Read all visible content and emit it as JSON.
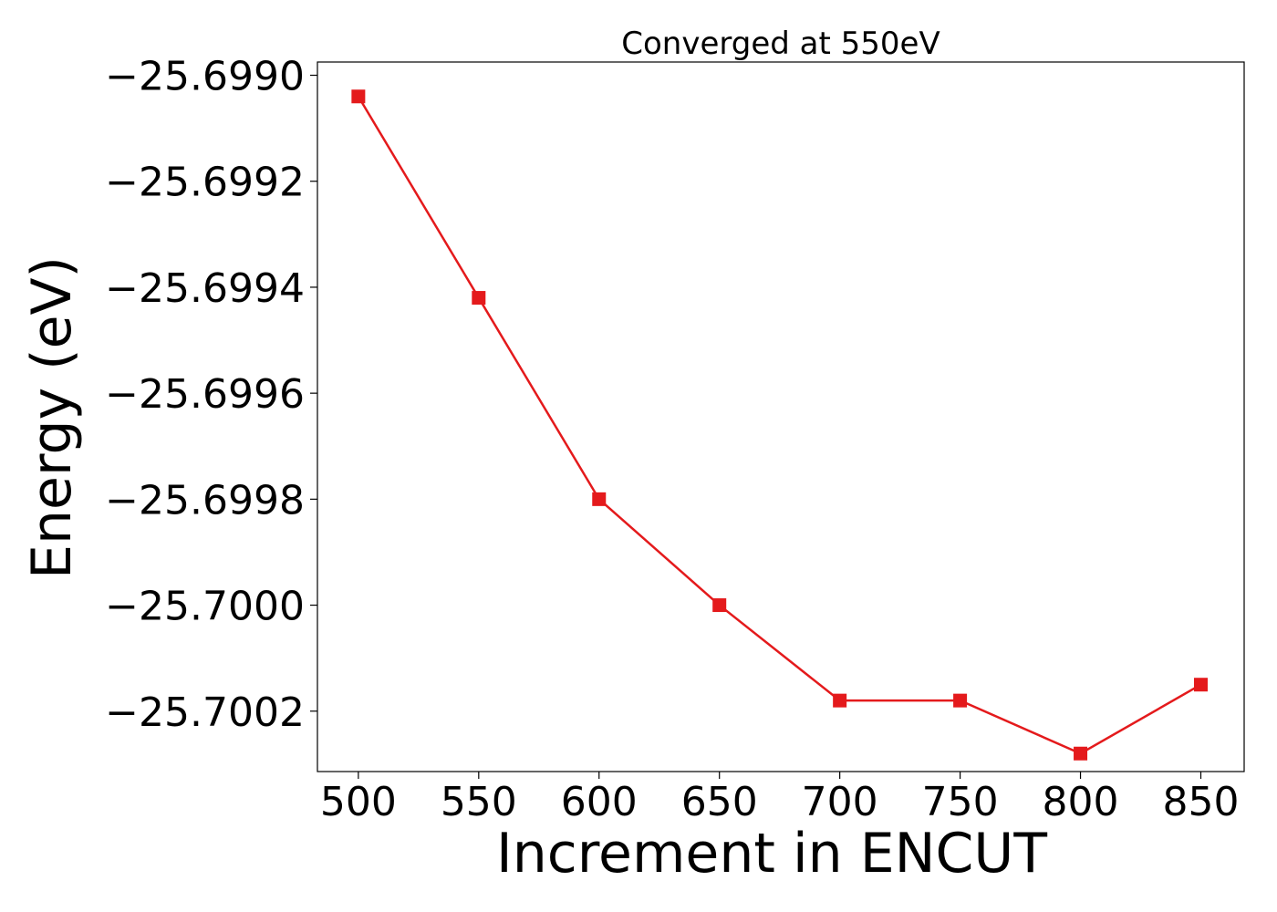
{
  "chart_data": {
    "type": "line",
    "title": "Converged at 550eV",
    "xlabel": "Increment in ENCUT",
    "ylabel": "Energy (eV)",
    "x": [
      500,
      550,
      600,
      650,
      700,
      750,
      800,
      850
    ],
    "series": [
      {
        "values": [
          -25.69904,
          -25.69942,
          -25.6998,
          -25.7,
          -25.70018,
          -25.70018,
          -25.70028,
          -25.70015
        ],
        "color": "#e41a1c",
        "marker": "square"
      }
    ],
    "xlim": [
      483,
      868
    ],
    "ylim": [
      -25.700314,
      -25.698975
    ],
    "xticks": [
      500,
      550,
      600,
      650,
      700,
      750,
      800,
      850
    ],
    "xtick_labels": [
      "500",
      "550",
      "600",
      "650",
      "700",
      "750",
      "800",
      "850"
    ],
    "yticks": [
      -25.699,
      -25.6992,
      -25.6994,
      -25.6996,
      -25.6998,
      -25.7,
      -25.7002
    ],
    "ytick_labels": [
      "−25.6990",
      "−25.6992",
      "−25.6994",
      "−25.6996",
      "−25.6998",
      "−25.7000",
      "−25.7002"
    ],
    "grid": false,
    "legend": "none"
  }
}
